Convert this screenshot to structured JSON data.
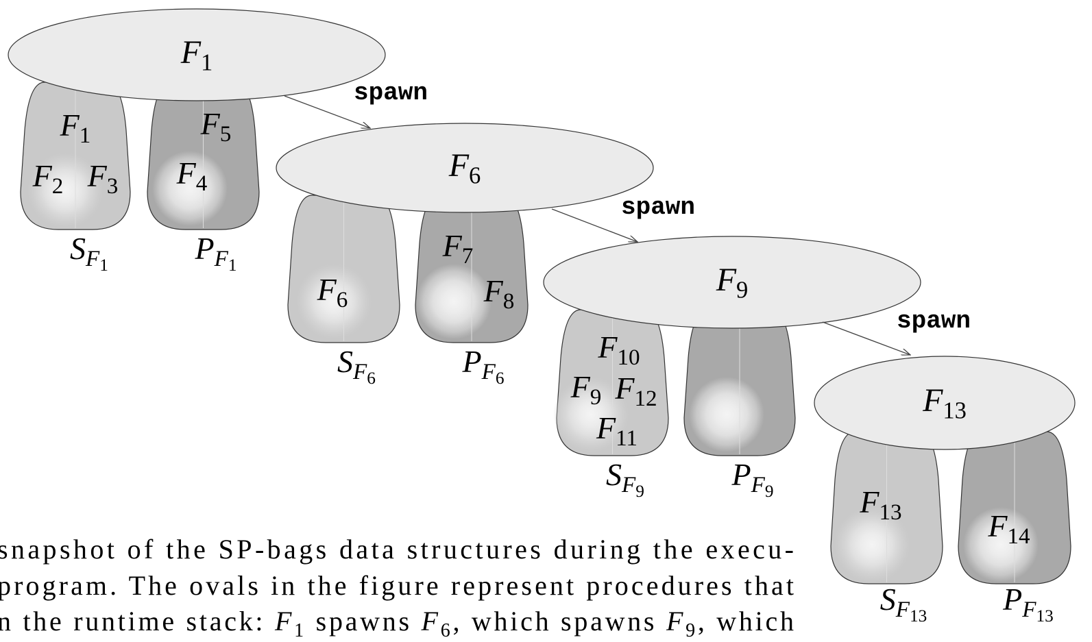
{
  "nodes": [
    {
      "label": {
        "base": "F",
        "sub": "1"
      },
      "s_bag": {
        "label": {
          "base": "S",
          "sub": "F",
          "subsub": "1"
        },
        "items": [
          {
            "base": "F",
            "sub": "1"
          },
          {
            "base": "F",
            "sub": "2"
          },
          {
            "base": "F",
            "sub": "3"
          }
        ]
      },
      "p_bag": {
        "label": {
          "base": "P",
          "sub": "F",
          "subsub": "1"
        },
        "items": [
          {
            "base": "F",
            "sub": "5"
          },
          {
            "base": "F",
            "sub": "4"
          }
        ]
      },
      "spawn_label": "spawn"
    },
    {
      "label": {
        "base": "F",
        "sub": "6"
      },
      "s_bag": {
        "label": {
          "base": "S",
          "sub": "F",
          "subsub": "6"
        },
        "items": [
          {
            "base": "F",
            "sub": "6"
          }
        ]
      },
      "p_bag": {
        "label": {
          "base": "P",
          "sub": "F",
          "subsub": "6"
        },
        "items": [
          {
            "base": "F",
            "sub": "7"
          },
          {
            "base": "F",
            "sub": "8"
          }
        ]
      },
      "spawn_label": "spawn"
    },
    {
      "label": {
        "base": "F",
        "sub": "9"
      },
      "s_bag": {
        "label": {
          "base": "S",
          "sub": "F",
          "subsub": "9"
        },
        "items": [
          {
            "base": "F",
            "sub": "10"
          },
          {
            "base": "F",
            "sub": "9"
          },
          {
            "base": "F",
            "sub": "12"
          },
          {
            "base": "F",
            "sub": "11"
          }
        ]
      },
      "p_bag": {
        "label": {
          "base": "P",
          "sub": "F",
          "subsub": "9"
        },
        "items": []
      },
      "spawn_label": "spawn"
    },
    {
      "label": {
        "base": "F",
        "sub": "13"
      },
      "s_bag": {
        "label": {
          "base": "S",
          "sub": "F",
          "subsub": "13"
        },
        "items": [
          {
            "base": "F",
            "sub": "13"
          }
        ]
      },
      "p_bag": {
        "label": {
          "base": "P",
          "sub": "F",
          "subsub": "13"
        },
        "items": [
          {
            "base": "F",
            "sub": "14"
          }
        ]
      }
    }
  ],
  "caption": {
    "lines": [
      [
        {
          "text": "snapshot of the SP-bags data structures during the execu-",
          "style": "roman"
        }
      ],
      [
        {
          "text": "program.  The ovals in the figure represent procedures that",
          "style": "roman"
        }
      ],
      [
        {
          "text": "n the runtime stack: ",
          "style": "roman"
        },
        {
          "text": "F",
          "style": "italic"
        },
        {
          "text": "1",
          "style": "sub"
        },
        {
          "text": " spawns ",
          "style": "roman"
        },
        {
          "text": "F",
          "style": "italic"
        },
        {
          "text": "6",
          "style": "sub"
        },
        {
          "text": ", which spawns ",
          "style": "roman"
        },
        {
          "text": "F",
          "style": "italic"
        },
        {
          "text": "9",
          "style": "sub"
        },
        {
          "text": ", which",
          "style": "roman"
        }
      ]
    ]
  }
}
